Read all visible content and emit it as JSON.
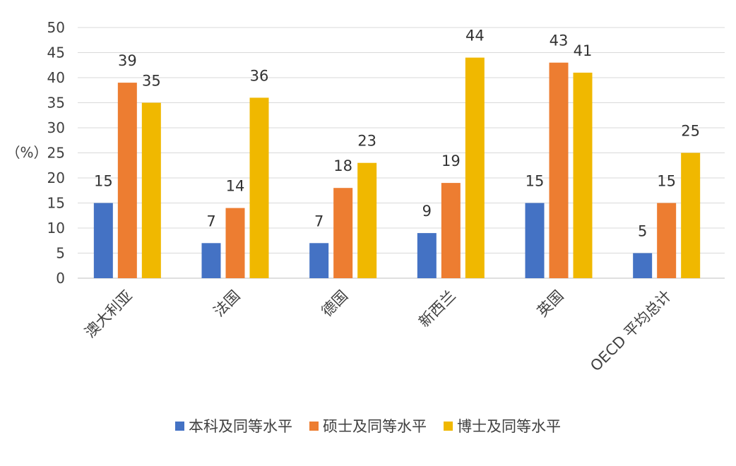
{
  "chart_data": {
    "type": "bar",
    "ylabel": "（%）",
    "ylim": [
      0,
      50
    ],
    "yticks": [
      0,
      5,
      10,
      15,
      20,
      25,
      30,
      35,
      40,
      45,
      50
    ],
    "grid": true,
    "legend_position": "bottom",
    "categories": [
      "澳大利亚",
      "法国",
      "德国",
      "新西兰",
      "英国",
      "OECD 平均总计"
    ],
    "series": [
      {
        "name": "本科及同等水平",
        "color": "#4472C4",
        "values": [
          15,
          7,
          7,
          9,
          15,
          5
        ]
      },
      {
        "name": "硕士及同等水平",
        "color": "#ED7D31",
        "values": [
          39,
          14,
          18,
          19,
          43,
          15
        ]
      },
      {
        "name": "博士及同等水平",
        "color": "#F0B800",
        "values": [
          35,
          36,
          23,
          44,
          41,
          25
        ]
      }
    ]
  }
}
